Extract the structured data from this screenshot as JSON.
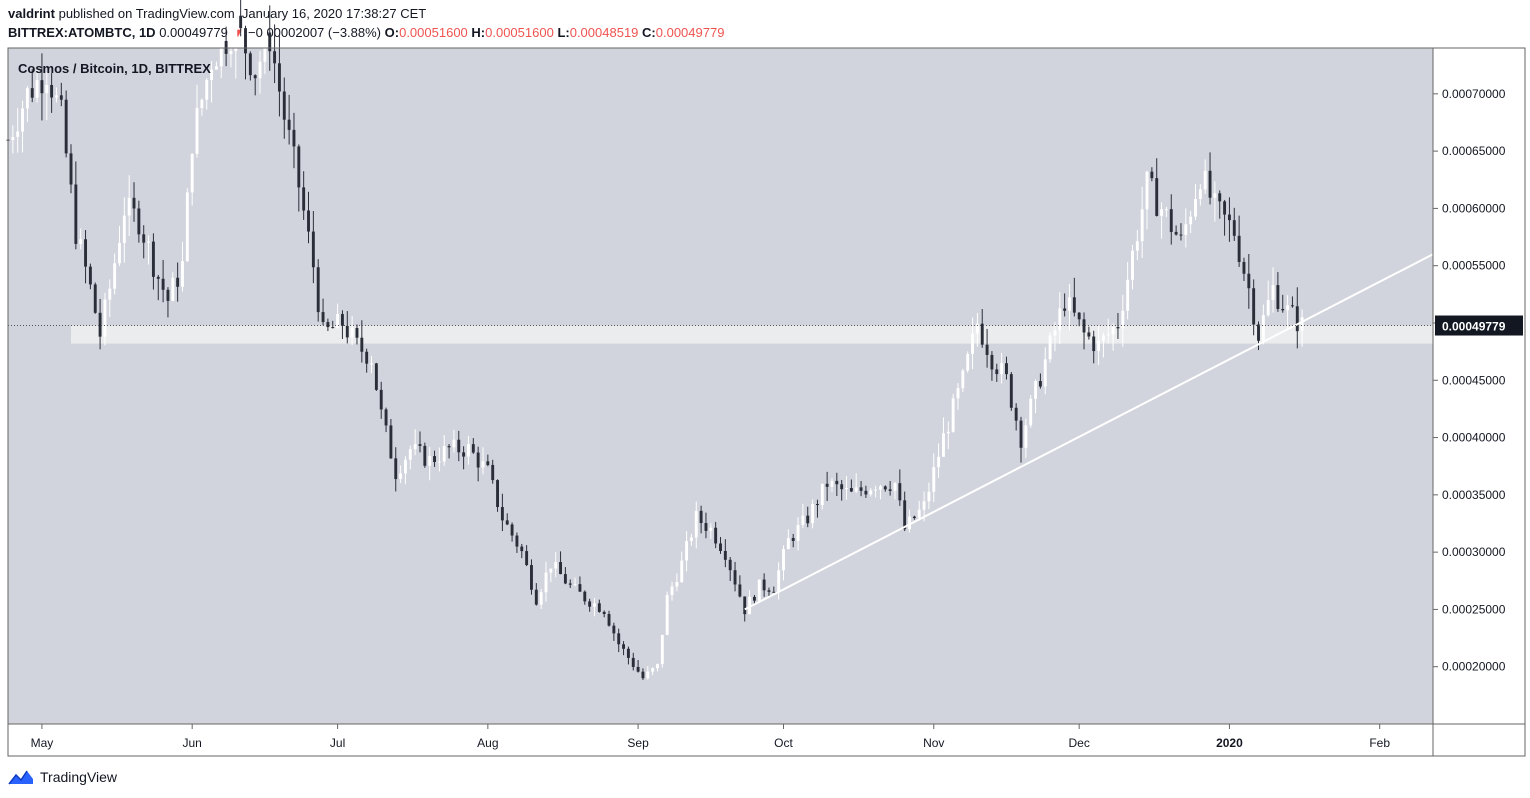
{
  "header": {
    "author": "valdrint",
    "published": "published on TradingView.com, January 16, 2020 17:38:27 CET",
    "symbol": "BITTREX:ATOMBTC, 1D",
    "last": "0.00049779",
    "arrow": "▼",
    "change": "−0.00002007 (−3.88%)",
    "o_label": "O:",
    "o_value": "0.00051600",
    "h_label": "H:",
    "h_value": "0.00051600",
    "l_label": "L:",
    "l_value": "0.00048519",
    "c_label": "C:",
    "c_value": "0.00049779"
  },
  "footer": {
    "brand": "TradingView"
  },
  "colors": {
    "plot_bg": "#d1d4dc",
    "up": "#ffffff",
    "down": "#2a2e39",
    "line": "#ffffff",
    "zone": "#f0f0f0",
    "accent_red": "#ef5350"
  },
  "chart_data": {
    "type": "candlestick",
    "title": "Cosmos / Bitcoin, 1D, BITTREX",
    "last_price_label": "0.00049779",
    "last_price": 0.00049779,
    "ylim": [
      0.00015,
      0.00074
    ],
    "y_ticks": [
      {
        "label": "0.00020000",
        "value": 0.0002
      },
      {
        "label": "0.00025000",
        "value": 0.00025
      },
      {
        "label": "0.00030000",
        "value": 0.0003
      },
      {
        "label": "0.00035000",
        "value": 0.00035
      },
      {
        "label": "0.00040000",
        "value": 0.0004
      },
      {
        "label": "0.00045000",
        "value": 0.00045
      },
      {
        "label": "0.00050000",
        "value": 0.0005
      },
      {
        "label": "0.00055000",
        "value": 0.00055
      },
      {
        "label": "0.00060000",
        "value": 0.0006
      },
      {
        "label": "0.00065000",
        "value": 0.00065
      },
      {
        "label": "0.00070000",
        "value": 0.0007
      }
    ],
    "x_range": [
      "2019-04-24",
      "2020-02-12"
    ],
    "x_ticks": [
      {
        "label": "May",
        "date": "2019-05-01",
        "bold": false
      },
      {
        "label": "Jun",
        "date": "2019-06-01",
        "bold": false
      },
      {
        "label": "Jul",
        "date": "2019-07-01",
        "bold": false
      },
      {
        "label": "Aug",
        "date": "2019-08-01",
        "bold": false
      },
      {
        "label": "Sep",
        "date": "2019-09-01",
        "bold": false
      },
      {
        "label": "Oct",
        "date": "2019-10-01",
        "bold": false
      },
      {
        "label": "Nov",
        "date": "2019-11-01",
        "bold": false
      },
      {
        "label": "Dec",
        "date": "2019-12-01",
        "bold": false
      },
      {
        "label": "2020",
        "date": "2020-01-01",
        "bold": true
      },
      {
        "label": "Feb",
        "date": "2020-02-01",
        "bold": false
      }
    ],
    "price_path": [
      [
        "2019-04-24",
        0.00066
      ],
      [
        "2019-04-28",
        0.0007
      ],
      [
        "2019-05-02",
        0.00072
      ],
      [
        "2019-05-05",
        0.00068
      ],
      [
        "2019-05-08",
        0.00058
      ],
      [
        "2019-05-11",
        0.00053
      ],
      [
        "2019-05-13",
        0.00049
      ],
      [
        "2019-05-15",
        0.00053
      ],
      [
        "2019-05-18",
        0.0006
      ],
      [
        "2019-05-21",
        0.00059
      ],
      [
        "2019-05-25",
        0.00054
      ],
      [
        "2019-05-27",
        0.00052
      ],
      [
        "2019-05-30",
        0.00055
      ],
      [
        "2019-06-01",
        0.00066
      ],
      [
        "2019-06-05",
        0.00073
      ],
      [
        "2019-06-10",
        0.00076
      ],
      [
        "2019-06-14",
        0.00072
      ],
      [
        "2019-06-17",
        0.00075
      ],
      [
        "2019-06-20",
        0.00068
      ],
      [
        "2019-06-23",
        0.00062
      ],
      [
        "2019-06-26",
        0.00055
      ],
      [
        "2019-06-28",
        0.00049
      ],
      [
        "2019-07-02",
        0.0005
      ],
      [
        "2019-07-05",
        0.00048
      ],
      [
        "2019-07-08",
        0.00047
      ],
      [
        "2019-07-10",
        0.00042
      ],
      [
        "2019-07-13",
        0.00037
      ],
      [
        "2019-07-16",
        0.00039
      ],
      [
        "2019-07-20",
        0.00038
      ],
      [
        "2019-07-24",
        0.00039
      ],
      [
        "2019-07-28",
        0.00039
      ],
      [
        "2019-08-01",
        0.00037
      ],
      [
        "2019-08-04",
        0.00033
      ],
      [
        "2019-08-08",
        0.0003
      ],
      [
        "2019-08-11",
        0.00026
      ],
      [
        "2019-08-14",
        0.00029
      ],
      [
        "2019-08-18",
        0.00027
      ],
      [
        "2019-08-21",
        0.00026
      ],
      [
        "2019-08-25",
        0.00025
      ],
      [
        "2019-08-28",
        0.00022
      ],
      [
        "2019-09-02",
        0.00019
      ],
      [
        "2019-09-05",
        0.0002
      ],
      [
        "2019-09-07",
        0.00026
      ],
      [
        "2019-09-10",
        0.00029
      ],
      [
        "2019-09-13",
        0.00033
      ],
      [
        "2019-09-16",
        0.00032
      ],
      [
        "2019-09-19",
        0.0003
      ],
      [
        "2019-09-23",
        0.00025
      ],
      [
        "2019-09-26",
        0.00027
      ],
      [
        "2019-09-29",
        0.00027
      ],
      [
        "2019-10-02",
        0.00031
      ],
      [
        "2019-10-06",
        0.00033
      ],
      [
        "2019-10-10",
        0.00036
      ],
      [
        "2019-10-15",
        0.00035
      ],
      [
        "2019-10-20",
        0.00036
      ],
      [
        "2019-10-24",
        0.00036
      ],
      [
        "2019-10-26",
        0.00032
      ],
      [
        "2019-10-30",
        0.00034
      ],
      [
        "2019-11-03",
        0.0004
      ],
      [
        "2019-11-07",
        0.00045
      ],
      [
        "2019-11-10",
        0.0005
      ],
      [
        "2019-11-13",
        0.00047
      ],
      [
        "2019-11-16",
        0.00045
      ],
      [
        "2019-11-19",
        0.0004
      ],
      [
        "2019-11-22",
        0.00044
      ],
      [
        "2019-11-25",
        0.00048
      ],
      [
        "2019-11-28",
        0.00052
      ],
      [
        "2019-12-02",
        0.00049
      ],
      [
        "2019-12-05",
        0.00048
      ],
      [
        "2019-12-09",
        0.0005
      ],
      [
        "2019-12-12",
        0.00056
      ],
      [
        "2019-12-15",
        0.00062
      ],
      [
        "2019-12-18",
        0.0006
      ],
      [
        "2019-12-22",
        0.00057
      ],
      [
        "2019-12-26",
        0.00063
      ],
      [
        "2019-12-29",
        0.0006
      ],
      [
        "2020-01-02",
        0.00058
      ],
      [
        "2020-01-05",
        0.00053
      ],
      [
        "2020-01-07",
        0.00049
      ],
      [
        "2020-01-10",
        0.00053
      ],
      [
        "2020-01-13",
        0.00051
      ],
      [
        "2020-01-16",
        0.0004978
      ]
    ],
    "trendline": {
      "from": [
        "2019-09-23",
        0.00025
      ],
      "to": [
        "2020-02-12",
        0.00056
      ],
      "color": "#ffffff"
    },
    "support_zone": {
      "from_date": "2019-05-07",
      "to_date": "2020-02-12",
      "low": 0.000482,
      "high": 0.0004978,
      "color": "#f0f0f0"
    }
  }
}
